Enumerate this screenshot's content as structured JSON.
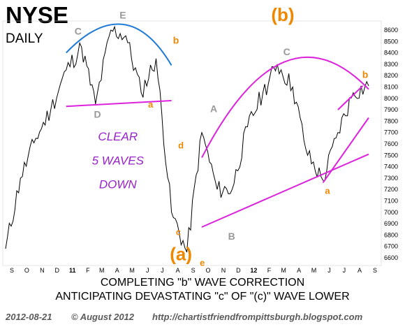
{
  "header": {
    "title": "NYSE",
    "subtitle": "DAILY"
  },
  "footer": {
    "date": "2012-08-21",
    "copyright": "© August 2012",
    "url": "http://chartistfriendfrompittsburgh.blogspot.com"
  },
  "chart_data": {
    "type": "line",
    "ylim": [
      6600,
      8700
    ],
    "y_ticks": [
      8600,
      8500,
      8400,
      8300,
      8200,
      8100,
      8000,
      7900,
      7800,
      7700,
      7600,
      7500,
      7400,
      7300,
      7200,
      7100,
      7000,
      6900,
      6800,
      6700,
      6600
    ],
    "x_tick_labels": [
      "S",
      "O",
      "N",
      "D",
      "11",
      "F",
      "M",
      "A",
      "M",
      "J",
      "J",
      "A",
      "S",
      "O",
      "N",
      "D",
      "12",
      "F",
      "M",
      "A",
      "M",
      "J",
      "J",
      "A",
      "S"
    ],
    "x": [
      "2010-09",
      "2010-10",
      "2010-11",
      "2010-12",
      "2011-01",
      "2011-02",
      "2011-03",
      "2011-04",
      "2011-05",
      "2011-06",
      "2011-07",
      "2011-08",
      "2011-09",
      "2011-10",
      "2011-11",
      "2011-12",
      "2012-01",
      "2012-02",
      "2012-03",
      "2012-04",
      "2012-05",
      "2012-06",
      "2012-07",
      "2012-08",
      "2012-09"
    ],
    "series": [
      {
        "values": [
          6680,
          7300,
          7650,
          7900,
          8250,
          8450,
          7950,
          8600,
          8550,
          8050,
          8350,
          7000,
          6650,
          7700,
          7200,
          7200,
          7750,
          8050,
          8300,
          8100,
          7500,
          7280,
          7700,
          8050,
          8110
        ],
        "color": "#000000"
      }
    ],
    "overlay_lines": [
      {
        "kind": "arc",
        "color": "#1e7ad6",
        "points": [
          [
            "2011-01",
            8400
          ],
          [
            "2011-04-25",
            8650
          ],
          [
            "2011-08",
            8290
          ]
        ]
      },
      {
        "kind": "line",
        "color": "#dd22dd",
        "points": [
          [
            "2011-01",
            7930
          ],
          [
            "2011-08",
            7980
          ]
        ]
      },
      {
        "kind": "arc",
        "color": "#dd22dd",
        "points": [
          [
            "2011-10",
            7480
          ],
          [
            "2012-03-15",
            8320
          ],
          [
            "2012-09",
            8080
          ]
        ]
      },
      {
        "kind": "line",
        "color": "#dd22dd",
        "points": [
          [
            "2011-10",
            6870
          ],
          [
            "2012-09",
            7510
          ]
        ]
      },
      {
        "kind": "line",
        "color": "#dd22dd",
        "points": [
          [
            "2012-06",
            7260
          ],
          [
            "2012-09",
            7830
          ]
        ]
      },
      {
        "kind": "line",
        "color": "#dd22dd",
        "points": [
          [
            "2012-07",
            7900
          ],
          [
            "2012-08-20",
            8110
          ]
        ]
      }
    ],
    "annotations": [
      {
        "text": "C",
        "color": "#999999",
        "at": [
          "2011-01-25",
          8560
        ],
        "size": 14
      },
      {
        "text": "E",
        "color": "#999999",
        "at": [
          "2011-04-25",
          8700
        ],
        "size": 14
      },
      {
        "text": "b",
        "color": "#ee8800",
        "at": [
          "2011-08-10",
          8480
        ],
        "size": 14
      },
      {
        "text": "D",
        "color": "#999999",
        "at": [
          "2011-03-05",
          7830
        ],
        "size": 14
      },
      {
        "text": "a",
        "color": "#ee8800",
        "at": [
          "2011-06-20",
          7920
        ],
        "size": 13
      },
      {
        "text": "CLEAR",
        "color": "#9922cc",
        "at": [
          "2011-04-15",
          7630
        ],
        "size": 17,
        "italic": true
      },
      {
        "text": "5 WAVES",
        "color": "#9922cc",
        "at": [
          "2011-04-15",
          7420
        ],
        "size": 17,
        "italic": true
      },
      {
        "text": "DOWN",
        "color": "#9922cc",
        "at": [
          "2011-04-15",
          7210
        ],
        "size": 17,
        "italic": true
      },
      {
        "text": "d",
        "color": "#ee8800",
        "at": [
          "2011-08-20",
          7560
        ],
        "size": 13
      },
      {
        "text": "c",
        "color": "#ee8800",
        "at": [
          "2011-08-15",
          6800
        ],
        "size": 13
      },
      {
        "text": "(a)",
        "color": "#ee8800",
        "at": [
          "2011-08-20",
          6580
        ],
        "size": 26
      },
      {
        "text": "e",
        "color": "#ee8800",
        "at": [
          "2011-10-02",
          6530
        ],
        "size": 13
      },
      {
        "text": "A",
        "color": "#999999",
        "at": [
          "2011-10-25",
          7880
        ],
        "size": 14
      },
      {
        "text": "B",
        "color": "#999999",
        "at": [
          "2011-11-30",
          6760
        ],
        "size": 14
      },
      {
        "text": "(b)",
        "color": "#ee8800",
        "at": [
          "2012-03-12",
          8680
        ],
        "size": 26
      },
      {
        "text": "C",
        "color": "#999999",
        "at": [
          "2012-03-20",
          8380
        ],
        "size": 14
      },
      {
        "text": "a",
        "color": "#ee8800",
        "at": [
          "2012-06-10",
          7160
        ],
        "size": 13
      },
      {
        "text": "b",
        "color": "#ee8800",
        "at": [
          "2012-08-25",
          8180
        ],
        "size": 14
      }
    ],
    "caption": [
      "COMPLETING \"b\" WAVE CORRECTION",
      "ANTICIPATING DEVASTATING \"c\" OF \"(c)\" WAVE LOWER"
    ],
    "grid": false
  }
}
